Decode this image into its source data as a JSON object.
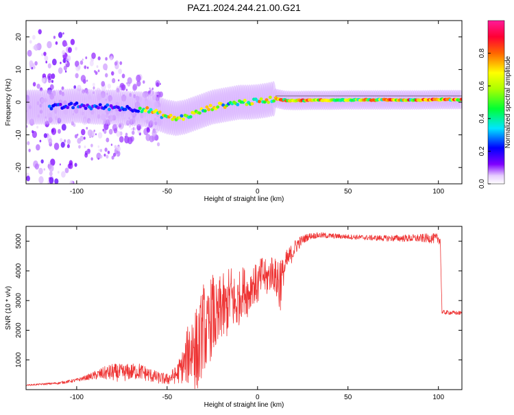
{
  "title": "PAZ1.2024.244.21.00.G21",
  "chart_data": [
    {
      "type": "heatmap",
      "xlabel": "Height of straight line (km)",
      "ylabel": "Frequency (Hz)",
      "xlim": [
        -128,
        113
      ],
      "ylim": [
        -25,
        25
      ],
      "xticks": [
        -100,
        -50,
        0,
        50,
        100
      ],
      "yticks": [
        -20,
        -10,
        0,
        10,
        20
      ],
      "grid": false,
      "colorbar": {
        "label": "Normalized spectral amplitude",
        "range": [
          0,
          1
        ],
        "ticks": [
          "0.0",
          "0.2",
          "0.4",
          "0.6",
          "0.8"
        ],
        "colormap": "rainbow (white → purple → blue → cyan → green → yellow → red → magenta)"
      },
      "ridge": {
        "x": [
          -120,
          -110,
          -100,
          -90,
          -80,
          -70,
          -65,
          -60,
          -55,
          -50,
          -45,
          -40,
          -35,
          -30,
          -25,
          -20,
          -15,
          -10,
          -5,
          0,
          5,
          10,
          15,
          20,
          30,
          40,
          50,
          60,
          70,
          80,
          90,
          100,
          110
        ],
        "freq": [
          -1.5,
          -1.5,
          -1.0,
          -1.5,
          -1.5,
          -2.0,
          -2.0,
          -2.5,
          -3.5,
          -4.5,
          -5.0,
          -4.5,
          -3.5,
          -2.5,
          -1.5,
          -1.0,
          -0.5,
          0.0,
          0.0,
          0.2,
          0.6,
          1.2,
          0.6,
          0.5,
          0.6,
          0.6,
          0.7,
          0.7,
          0.7,
          0.7,
          0.7,
          0.8,
          0.8
        ]
      }
    },
    {
      "type": "line",
      "xlabel": "Height of straight line (km)",
      "ylabel": "SNR (10 * v/v)",
      "xlim": [
        -128,
        113
      ],
      "ylim": [
        0,
        5500
      ],
      "xticks": [
        -100,
        -50,
        0,
        50,
        100
      ],
      "yticks": [
        1000,
        2000,
        3000,
        4000,
        5000
      ],
      "grid": false,
      "color": "#ee3333",
      "series": [
        {
          "x": [
            -128,
            -120,
            -110,
            -100,
            -95,
            -90,
            -85,
            -80,
            -75,
            -70,
            -65,
            -60,
            -55,
            -50,
            -45,
            -40,
            -38,
            -35,
            -33,
            -30,
            -28,
            -25,
            -22,
            -20,
            -18,
            -15,
            -12,
            -10,
            -8,
            -5,
            -3,
            0,
            3,
            5,
            8,
            10,
            12,
            14,
            16,
            18,
            20,
            22,
            25,
            28,
            30,
            35,
            40,
            50,
            60,
            70,
            80,
            90,
            95,
            100,
            101,
            102,
            105,
            110,
            113
          ],
          "y": [
            150,
            180,
            220,
            320,
            400,
            480,
            550,
            580,
            560,
            600,
            620,
            500,
            400,
            350,
            500,
            900,
            1300,
            1500,
            1200,
            2200,
            1800,
            2600,
            2200,
            2900,
            2600,
            3200,
            2800,
            3100,
            3400,
            3200,
            3600,
            3500,
            3900,
            3700,
            4000,
            3800,
            3600,
            3900,
            4300,
            4500,
            4700,
            4900,
            5050,
            5150,
            5180,
            5200,
            5180,
            5150,
            5120,
            5100,
            5100,
            5100,
            5100,
            5080,
            5050,
            2600,
            2600,
            2580,
            2580
          ],
          "noise": [
            20,
            30,
            40,
            60,
            80,
            150,
            220,
            300,
            300,
            280,
            280,
            250,
            200,
            200,
            300,
            700,
            1200,
            1600,
            1400,
            1500,
            1300,
            1400,
            1200,
            1300,
            1100,
            1100,
            1000,
            900,
            800,
            800,
            700,
            700,
            700,
            600,
            600,
            600,
            1300,
            500,
            400,
            350,
            300,
            250,
            150,
            120,
            100,
            100,
            90,
            80,
            90,
            100,
            120,
            140,
            160,
            180,
            150,
            80,
            70,
            70,
            70
          ]
        }
      ]
    }
  ]
}
